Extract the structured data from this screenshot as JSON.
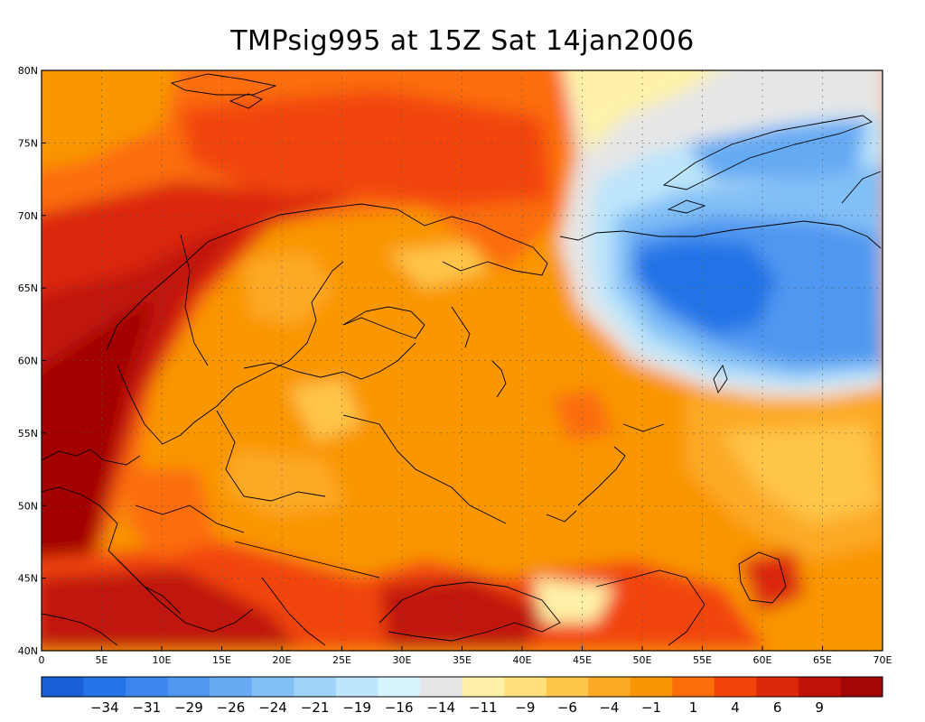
{
  "title": "TMPsig995 at 15Z Sat 14jan2006",
  "chart_data": {
    "type": "heatmap",
    "variable": "TMPsig995",
    "valid_time": "15Z Sat 14jan2006",
    "xlim": [
      0,
      70
    ],
    "ylim": [
      40,
      80
    ],
    "x_ticks": [
      "0",
      "5E",
      "10E",
      "15E",
      "20E",
      "25E",
      "30E",
      "35E",
      "40E",
      "45E",
      "50E",
      "55E",
      "60E",
      "65E",
      "70E"
    ],
    "y_ticks": [
      "40N",
      "45N",
      "50N",
      "55N",
      "60N",
      "65N",
      "70N",
      "75N",
      "80N"
    ],
    "grid": true,
    "colorbar": {
      "placement": "bottom",
      "colors": [
        "#1a5fd8",
        "#2473e6",
        "#3a86ec",
        "#4f97f0",
        "#66aaf3",
        "#82bff6",
        "#a0d3f9",
        "#bde5fb",
        "#d7f3fd",
        "#e6e6e6",
        "#fff2a8",
        "#ffe07a",
        "#ffc64a",
        "#fcaa25",
        "#f99606",
        "#fb6d0a",
        "#f24408",
        "#dc2808",
        "#c01208",
        "#a30606"
      ],
      "labels": [
        "-34",
        "-31",
        "-29",
        "-26",
        "-24",
        "-21",
        "-19",
        "-16",
        "-14",
        "-11",
        "-9",
        "-6",
        "-4",
        "-1",
        "1",
        "4",
        "6",
        "9"
      ]
    }
  }
}
